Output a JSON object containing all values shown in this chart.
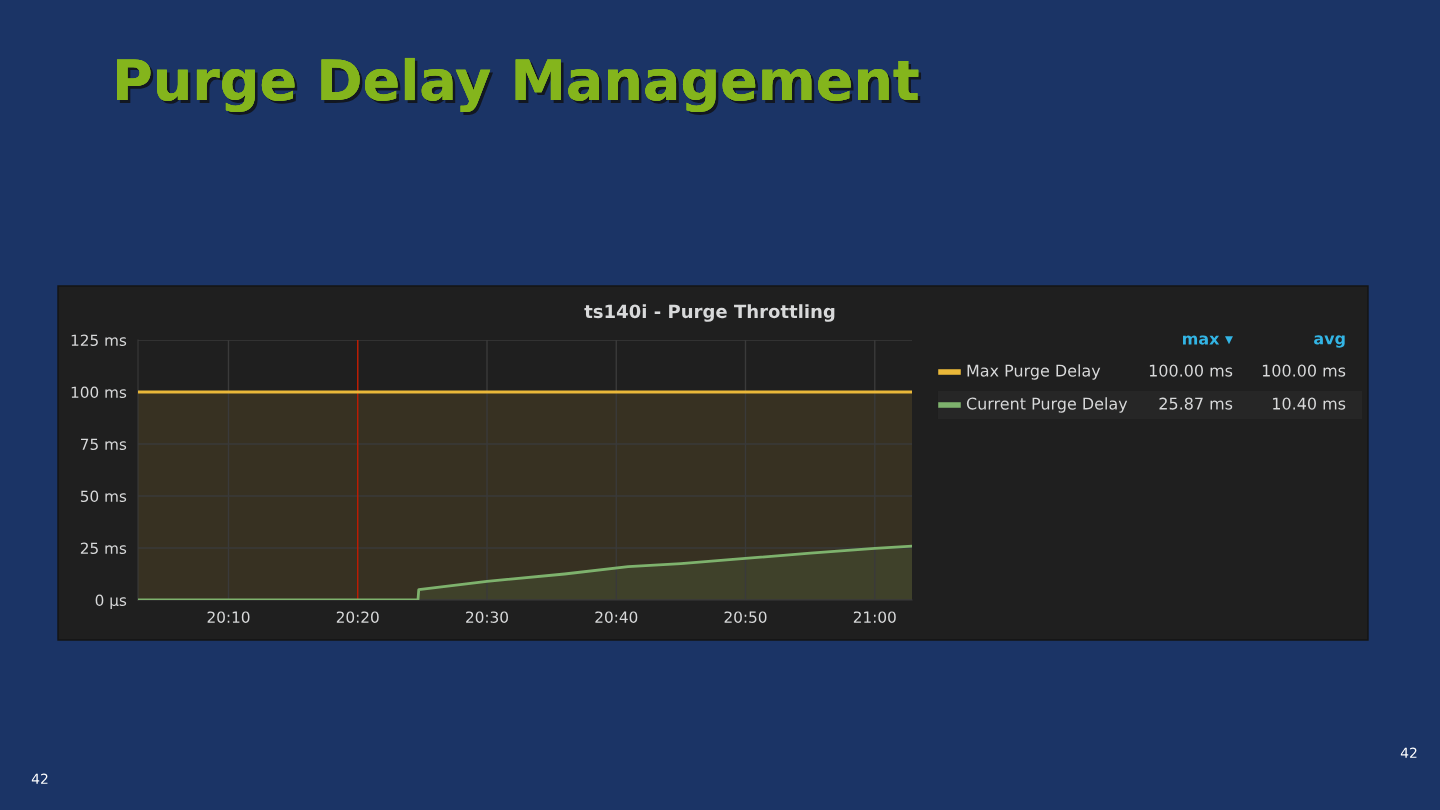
{
  "chart_data": {
    "type": "area",
    "title": "Purge Delay Management",
    "subtitle": "ts140i - Purge Throttling",
    "series": [
      {
        "name": "Max Purge Delay",
        "color": "#eab839",
        "x": [
          20.05,
          21.048
        ],
        "values": [
          100,
          100
        ]
      },
      {
        "name": "Current Purge Delay",
        "color": "#7eb26d",
        "x": [
          20.05,
          20.411,
          20.412,
          20.5,
          20.6,
          20.682,
          20.75,
          20.833,
          20.917,
          21.0,
          21.048
        ],
        "values": [
          0,
          0,
          5,
          9,
          12.5,
          16,
          17.5,
          20,
          22.5,
          24.8,
          25.87
        ]
      }
    ],
    "xlim": [
      20.05,
      21.048
    ],
    "xticks": [
      {
        "value": 20.1667,
        "label": "20:10"
      },
      {
        "value": 20.3333,
        "label": "20:20"
      },
      {
        "value": 20.5,
        "label": "20:30"
      },
      {
        "value": 20.6667,
        "label": "20:40"
      },
      {
        "value": 20.8333,
        "label": "20:50"
      },
      {
        "value": 21.0,
        "label": "21:00"
      }
    ],
    "ylim": [
      0,
      125
    ],
    "yticks": [
      {
        "value": 0,
        "label": "0 µs"
      },
      {
        "value": 25,
        "label": "25 ms"
      },
      {
        "value": 50,
        "label": "50 ms"
      },
      {
        "value": 75,
        "label": "75 ms"
      },
      {
        "value": 100,
        "label": "100 ms"
      },
      {
        "value": 125,
        "label": "125 ms"
      }
    ],
    "ref_lines": [
      {
        "axis": "x",
        "value": 20.3333,
        "color": "#bf1b00"
      }
    ],
    "grid": true,
    "legend": "right",
    "line_style": "solid",
    "marker": "none",
    "annotations": [
      "max ▾",
      "avg",
      "100.00 ms",
      "100.00 ms",
      "25.87 ms",
      "10.40 ms",
      "42",
      "42"
    ]
  }
}
